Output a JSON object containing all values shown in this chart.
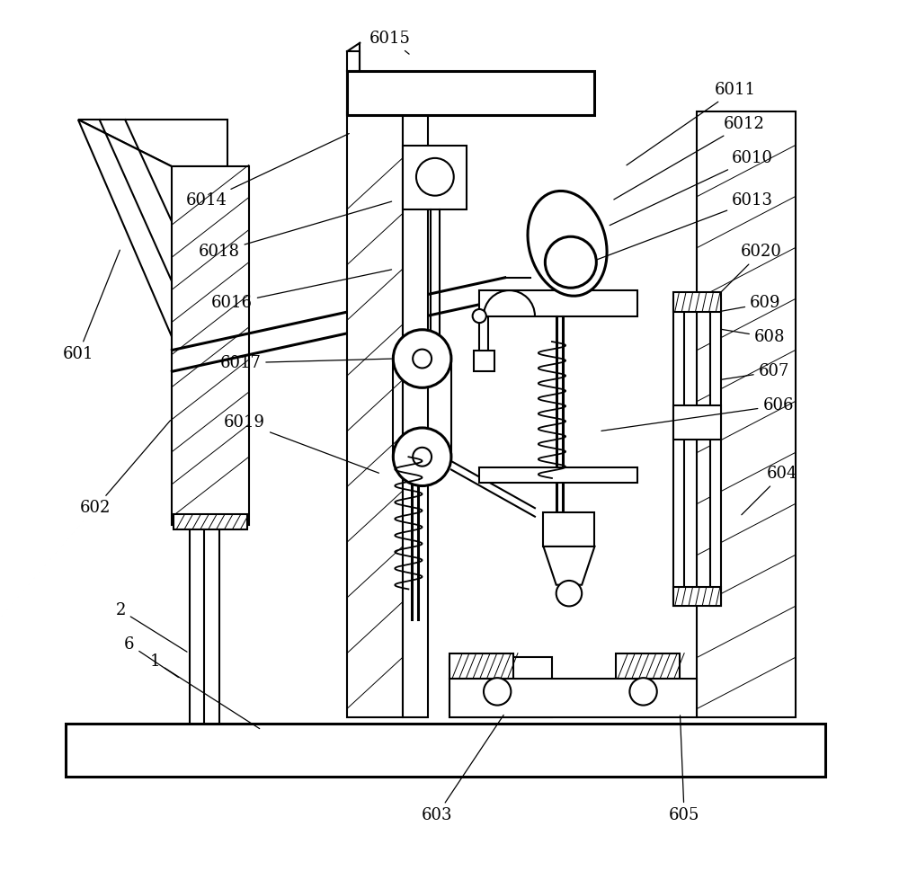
{
  "bg_color": "#ffffff",
  "lc": "#000000",
  "lw": 1.5,
  "lw_t": 0.7,
  "lw_k": 2.2,
  "fig_w": 10.0,
  "fig_h": 9.69,
  "label_positions": {
    "601": {
      "txt": [
        0.065,
        0.595
      ],
      "pt": [
        0.115,
        0.72
      ]
    },
    "602": {
      "txt": [
        0.085,
        0.415
      ],
      "pt": [
        0.175,
        0.52
      ]
    },
    "2": {
      "txt": [
        0.115,
        0.295
      ],
      "pt": [
        0.195,
        0.245
      ]
    },
    "6": {
      "txt": [
        0.125,
        0.255
      ],
      "pt": [
        0.185,
        0.215
      ]
    },
    "1": {
      "txt": [
        0.155,
        0.235
      ],
      "pt": [
        0.28,
        0.155
      ]
    },
    "6015": {
      "txt": [
        0.43,
        0.965
      ],
      "pt": [
        0.455,
        0.945
      ]
    },
    "6014": {
      "txt": [
        0.215,
        0.775
      ],
      "pt": [
        0.385,
        0.855
      ]
    },
    "6018": {
      "txt": [
        0.23,
        0.715
      ],
      "pt": [
        0.435,
        0.775
      ]
    },
    "6016": {
      "txt": [
        0.245,
        0.655
      ],
      "pt": [
        0.435,
        0.695
      ]
    },
    "6017": {
      "txt": [
        0.255,
        0.585
      ],
      "pt": [
        0.435,
        0.59
      ]
    },
    "6019": {
      "txt": [
        0.26,
        0.515
      ],
      "pt": [
        0.42,
        0.455
      ]
    },
    "6011": {
      "txt": [
        0.835,
        0.905
      ],
      "pt": [
        0.705,
        0.815
      ]
    },
    "6012": {
      "txt": [
        0.845,
        0.865
      ],
      "pt": [
        0.69,
        0.775
      ]
    },
    "6010": {
      "txt": [
        0.855,
        0.825
      ],
      "pt": [
        0.685,
        0.745
      ]
    },
    "6013": {
      "txt": [
        0.855,
        0.775
      ],
      "pt": [
        0.67,
        0.705
      ]
    },
    "6020": {
      "txt": [
        0.865,
        0.715
      ],
      "pt": [
        0.815,
        0.665
      ]
    },
    "609": {
      "txt": [
        0.87,
        0.655
      ],
      "pt": [
        0.815,
        0.645
      ]
    },
    "608": {
      "txt": [
        0.875,
        0.615
      ],
      "pt": [
        0.815,
        0.625
      ]
    },
    "607": {
      "txt": [
        0.88,
        0.575
      ],
      "pt": [
        0.815,
        0.565
      ]
    },
    "606": {
      "txt": [
        0.885,
        0.535
      ],
      "pt": [
        0.675,
        0.505
      ]
    },
    "604": {
      "txt": [
        0.89,
        0.455
      ],
      "pt": [
        0.84,
        0.405
      ]
    },
    "603": {
      "txt": [
        0.485,
        0.055
      ],
      "pt": [
        0.565,
        0.175
      ]
    },
    "605": {
      "txt": [
        0.775,
        0.055
      ],
      "pt": [
        0.77,
        0.175
      ]
    }
  }
}
